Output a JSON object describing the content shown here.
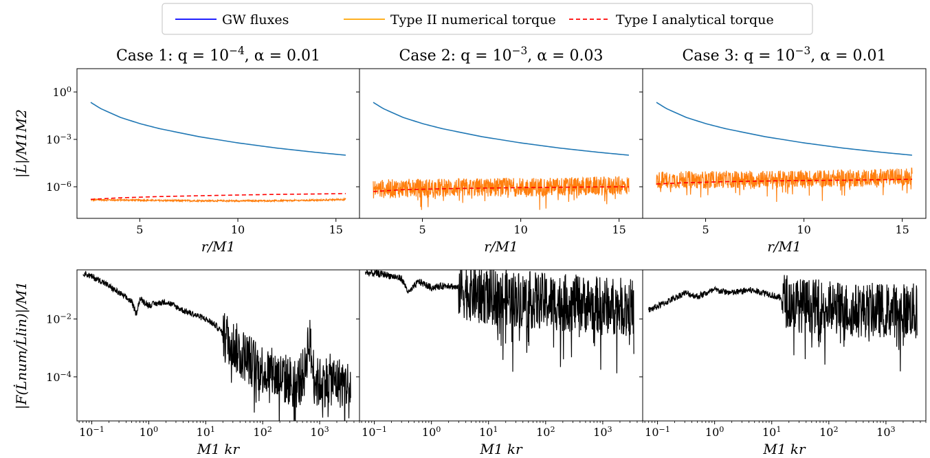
{
  "legend": {
    "entries": [
      {
        "label": "GW fluxes",
        "color": "#0000ff",
        "dash": "solid"
      },
      {
        "label": "Type II numerical torque",
        "color": "#ffa500",
        "dash": "solid"
      },
      {
        "label": "Type I analytical torque",
        "color": "#ff0000",
        "dash": "dashed"
      }
    ]
  },
  "chart_data": [
    {
      "type": "line",
      "panel": "top-1",
      "title": "Case 1: q = 10^-4, α = 0.01",
      "xlabel": "r/M1",
      "ylabel": "|L̇|/M1M2",
      "xscale": "linear",
      "yscale": "log",
      "xlim": [
        1.8,
        16.2
      ],
      "ylim": [
        1e-08,
        30
      ],
      "xticks": [
        5,
        10,
        15
      ],
      "yticks": [
        {
          "value": 1,
          "label": "10^0"
        },
        {
          "value": 0.001,
          "label": "10^-3"
        },
        {
          "value": 1e-06,
          "label": "10^-6"
        }
      ],
      "series": [
        {
          "name": "GW fluxes",
          "color": "#1f77b4",
          "style": "solid",
          "x": [
            2.5,
            3,
            4,
            5,
            6,
            8,
            10,
            12,
            14,
            15.5
          ],
          "y": [
            0.22,
            0.09,
            0.025,
            0.01,
            0.0048,
            0.0015,
            0.0006,
            0.00028,
            0.00015,
            0.0001
          ]
        },
        {
          "name": "Type II numerical torque",
          "color": "#ff7f0e",
          "style": "noisy",
          "x": [
            2.5,
            4,
            6,
            8,
            10,
            12,
            14,
            15.5
          ],
          "y": [
            1.5e-07,
            1.45e-07,
            1.35e-07,
            1.3e-07,
            1.28e-07,
            1.3e-07,
            1.4e-07,
            1.6e-07
          ],
          "noise": 0.05
        },
        {
          "name": "Type I analytical torque",
          "color": "#ff0000",
          "style": "dashed",
          "x": [
            2.5,
            4,
            6,
            8,
            10,
            12,
            14,
            15.5
          ],
          "y": [
            1.6e-07,
            2e-07,
            2.4e-07,
            2.7e-07,
            3e-07,
            3.3e-07,
            3.5e-07,
            3.7e-07
          ]
        }
      ]
    },
    {
      "type": "line",
      "panel": "top-2",
      "title": "Case 2: q = 10^-3, α = 0.03",
      "xlabel": "r/M1",
      "ylabel": "",
      "xscale": "linear",
      "yscale": "log",
      "xlim": [
        1.8,
        16.2
      ],
      "ylim": [
        1e-08,
        30
      ],
      "xticks": [
        5,
        10,
        15
      ],
      "series": [
        {
          "name": "GW fluxes",
          "color": "#1f77b4",
          "style": "solid",
          "x": [
            2.5,
            3,
            4,
            5,
            6,
            8,
            10,
            12,
            14,
            15.5
          ],
          "y": [
            0.22,
            0.09,
            0.025,
            0.01,
            0.0048,
            0.0015,
            0.0006,
            0.00028,
            0.00015,
            0.0001
          ]
        },
        {
          "name": "Type II numerical torque",
          "color": "#ff7f0e",
          "style": "noisy",
          "x": [
            2.5,
            4,
            6,
            8,
            10,
            12,
            14,
            15.5
          ],
          "y": [
            7e-07,
            8e-07,
            8.5e-07,
            9e-07,
            9.5e-07,
            1e-06,
            1.1e-06,
            1.2e-06
          ],
          "noise": 0.6
        },
        {
          "name": "Type I analytical torque",
          "color": "#ff0000",
          "style": "dashed",
          "x": [
            2.5,
            4,
            6,
            8,
            10,
            12,
            14,
            15.5
          ],
          "y": [
            5e-07,
            6.5e-07,
            7.5e-07,
            8.2e-07,
            8.8e-07,
            9.3e-07,
            9.8e-07,
            1e-06
          ]
        }
      ]
    },
    {
      "type": "line",
      "panel": "top-3",
      "title": "Case 3: q = 10^-3, α = 0.01",
      "xlabel": "r/M1",
      "ylabel": "",
      "xscale": "linear",
      "yscale": "log",
      "xlim": [
        1.8,
        16.2
      ],
      "ylim": [
        1e-08,
        30
      ],
      "xticks": [
        5,
        10,
        15
      ],
      "series": [
        {
          "name": "GW fluxes",
          "color": "#1f77b4",
          "style": "solid",
          "x": [
            2.5,
            3,
            4,
            5,
            6,
            8,
            10,
            12,
            14,
            15.5
          ],
          "y": [
            0.22,
            0.09,
            0.025,
            0.01,
            0.0048,
            0.0015,
            0.0006,
            0.00028,
            0.00015,
            0.0001
          ]
        },
        {
          "name": "Type II numerical torque",
          "color": "#ff7f0e",
          "style": "noisy",
          "x": [
            2.5,
            4,
            6,
            8,
            10,
            12,
            14,
            15.5
          ],
          "y": [
            2.6e-06,
            2.8e-06,
            2.9e-06,
            3e-06,
            3.2e-06,
            3.5e-06,
            3.9e-06,
            4.5e-06
          ],
          "noise": 0.55
        },
        {
          "name": "Type I analytical torque",
          "color": "#ff0000",
          "style": "dashed",
          "x": [
            2.5,
            4,
            6,
            8,
            10,
            12,
            14,
            15.5
          ],
          "y": [
            1.5e-06,
            1.8e-06,
            2.1e-06,
            2.3e-06,
            2.5e-06,
            2.6e-06,
            2.8e-06,
            3e-06
          ]
        }
      ]
    },
    {
      "type": "line",
      "panel": "bottom-1",
      "title": "",
      "xlabel": "M1 kr",
      "ylabel": "|F(L̇num/L̇lin)|/M1",
      "xscale": "log",
      "yscale": "log",
      "xlim": [
        0.055,
        5000
      ],
      "ylim": [
        3e-06,
        0.5
      ],
      "xticks": [
        {
          "value": 0.1,
          "label": "10^-1"
        },
        {
          "value": 1,
          "label": "10^0"
        },
        {
          "value": 10,
          "label": "10^1"
        },
        {
          "value": 100,
          "label": "10^2"
        },
        {
          "value": 1000,
          "label": "10^3"
        }
      ],
      "yticks": [
        {
          "value": 0.01,
          "label": "10^-2"
        },
        {
          "value": 0.0001,
          "label": "10^-4"
        }
      ],
      "series": [
        {
          "name": "",
          "color": "#000000",
          "style": "noisy",
          "x": [
            0.07,
            0.15,
            0.3,
            0.5,
            0.6,
            0.7,
            1,
            2,
            4,
            10,
            15,
            25,
            40,
            70,
            120,
            200,
            400,
            550,
            650,
            750,
            900,
            1500,
            3500
          ],
          "y": [
            0.4,
            0.2,
            0.08,
            0.04,
            0.015,
            0.05,
            0.03,
            0.04,
            0.02,
            0.01,
            0.006,
            0.002,
            0.0007,
            0.0003,
            0.00015,
            0.0001,
            6e-05,
            0.00015,
            0.003,
            0.0002,
            6e-05,
            8e-05,
            5e-05
          ],
          "noise": 0.9,
          "noise_start": 20
        }
      ]
    },
    {
      "type": "line",
      "panel": "bottom-2",
      "title": "",
      "xlabel": "M1 kr",
      "ylabel": "",
      "xscale": "log",
      "yscale": "log",
      "xlim": [
        0.055,
        5000
      ],
      "ylim": [
        3e-06,
        0.5
      ],
      "xticks": [
        {
          "value": 0.1,
          "label": "10^-1"
        },
        {
          "value": 1,
          "label": "10^0"
        },
        {
          "value": 10,
          "label": "10^1"
        },
        {
          "value": 100,
          "label": "10^2"
        },
        {
          "value": 1000,
          "label": "10^3"
        }
      ],
      "series": [
        {
          "name": "",
          "color": "#000000",
          "style": "noisy",
          "x": [
            0.07,
            0.15,
            0.3,
            0.4,
            0.6,
            1,
            2,
            5,
            10,
            30,
            100,
            300,
            1000,
            3500
          ],
          "y": [
            0.4,
            0.35,
            0.25,
            0.08,
            0.2,
            0.12,
            0.15,
            0.08,
            0.06,
            0.05,
            0.04,
            0.035,
            0.03,
            0.025
          ],
          "noise": 1.0,
          "noise_start": 3
        }
      ]
    },
    {
      "type": "line",
      "panel": "bottom-3",
      "title": "",
      "xlabel": "M1 kr",
      "ylabel": "",
      "xscale": "log",
      "yscale": "log",
      "xlim": [
        0.055,
        5000
      ],
      "ylim": [
        3e-06,
        0.5
      ],
      "xticks": [
        {
          "value": 0.1,
          "label": "10^-1"
        },
        {
          "value": 1,
          "label": "10^0"
        },
        {
          "value": 10,
          "label": "10^1"
        },
        {
          "value": 100,
          "label": "10^2"
        },
        {
          "value": 1000,
          "label": "10^3"
        }
      ],
      "series": [
        {
          "name": "",
          "color": "#000000",
          "style": "noisy",
          "x": [
            0.07,
            0.15,
            0.3,
            0.5,
            1,
            2,
            4,
            8,
            15,
            30,
            100,
            300,
            1000,
            3500
          ],
          "y": [
            0.02,
            0.04,
            0.08,
            0.06,
            0.1,
            0.08,
            0.1,
            0.08,
            0.05,
            0.03,
            0.025,
            0.02,
            0.02,
            0.02
          ],
          "noise": 0.95,
          "noise_start": 15
        }
      ]
    }
  ]
}
